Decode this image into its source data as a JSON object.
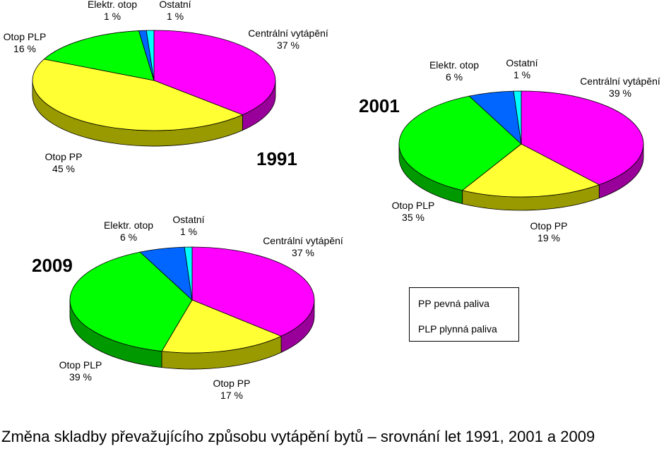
{
  "chart_data": [
    {
      "type": "pie",
      "year": "1991",
      "slices": [
        {
          "name": "Centrální vytápění",
          "value": 37,
          "label": "37 %",
          "color": "#FF00FF",
          "side": "#990099"
        },
        {
          "name": "Otop PP",
          "value": 45,
          "label": "45 %",
          "color": "#FFFF33",
          "side": "#999900"
        },
        {
          "name": "Otop PLP",
          "value": 16,
          "label": "16 %",
          "color": "#00FF00",
          "side": "#009900"
        },
        {
          "name": "Elektr. otop",
          "value": 1,
          "label": "1 %",
          "color": "#0066FF",
          "side": "#003399"
        },
        {
          "name": "Ostatní",
          "value": 1,
          "label": "1 %",
          "color": "#00FFFF",
          "side": "#009999"
        }
      ]
    },
    {
      "type": "pie",
      "year": "2001",
      "slices": [
        {
          "name": "Centrální vytápění",
          "value": 39,
          "label": "39 %",
          "color": "#FF00FF",
          "side": "#990099"
        },
        {
          "name": "Otop PP",
          "value": 19,
          "label": "19 %",
          "color": "#FFFF33",
          "side": "#999900"
        },
        {
          "name": "Otop PLP",
          "value": 35,
          "label": "35 %",
          "color": "#00FF00",
          "side": "#009900"
        },
        {
          "name": "Elektr. otop",
          "value": 6,
          "label": "6 %",
          "color": "#0066FF",
          "side": "#003399"
        },
        {
          "name": "Ostatní",
          "value": 1,
          "label": "1 %",
          "color": "#00FFFF",
          "side": "#009999"
        }
      ]
    },
    {
      "type": "pie",
      "year": "2009",
      "slices": [
        {
          "name": "Centrální vytápění",
          "value": 37,
          "label": "37 %",
          "color": "#FF00FF",
          "side": "#990099"
        },
        {
          "name": "Otop PP",
          "value": 17,
          "label": "17 %",
          "color": "#FFFF33",
          "side": "#999900"
        },
        {
          "name": "Otop PLP",
          "value": 39,
          "label": "39 %",
          "color": "#00FF00",
          "side": "#009900"
        },
        {
          "name": "Elektr. otop",
          "value": 6,
          "label": "6 %",
          "color": "#0066FF",
          "side": "#003399"
        },
        {
          "name": "Ostatní",
          "value": 1,
          "label": "1 %",
          "color": "#00FFFF",
          "side": "#009999"
        }
      ]
    }
  ],
  "legend": {
    "line1": "PP  pevná paliva",
    "line2": "PLP plynná paliva"
  },
  "caption": "Změna skladby převažujícího způsobu vytápění bytů – srovnání let 1991, 2001 a 2009"
}
